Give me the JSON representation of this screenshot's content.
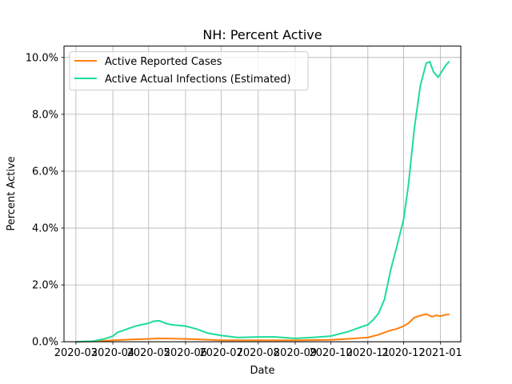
{
  "chart_data": {
    "type": "line",
    "title": "NH: Percent Active",
    "xlabel": "Date",
    "ylabel": "Percent Active",
    "x_ticks": [
      "2020-03",
      "2020-04",
      "2020-05",
      "2020-06",
      "2020-07",
      "2020-08",
      "2020-09",
      "2020-10",
      "2020-11",
      "2020-12",
      "2021-01"
    ],
    "y_ticks": [
      "0.0%",
      "2.0%",
      "4.0%",
      "6.0%",
      "8.0%",
      "10.0%"
    ],
    "xlim": [
      "2020-02-20",
      "2021-01-18"
    ],
    "ylim": [
      0,
      10.4
    ],
    "grid": true,
    "legend_position": "top-left",
    "series": [
      {
        "name": "Active Reported Cases",
        "color": "#ff7f0e",
        "x": [
          "2020-03-01",
          "2020-03-15",
          "2020-04-01",
          "2020-04-15",
          "2020-05-01",
          "2020-05-10",
          "2020-05-20",
          "2020-06-01",
          "2020-06-15",
          "2020-07-01",
          "2020-08-01",
          "2020-09-01",
          "2020-10-01",
          "2020-10-15",
          "2020-11-01",
          "2020-11-10",
          "2020-11-20",
          "2020-11-25",
          "2020-12-01",
          "2020-12-05",
          "2020-12-10",
          "2020-12-15",
          "2020-12-20",
          "2020-12-25",
          "2020-12-28",
          "2021-01-01",
          "2021-01-05",
          "2021-01-08"
        ],
        "values": [
          0,
          0.01,
          0.05,
          0.08,
          0.1,
          0.12,
          0.11,
          0.1,
          0.08,
          0.05,
          0.05,
          0.05,
          0.07,
          0.1,
          0.15,
          0.25,
          0.4,
          0.45,
          0.55,
          0.65,
          0.85,
          0.92,
          0.97,
          0.88,
          0.93,
          0.9,
          0.95,
          0.96
        ]
      },
      {
        "name": "Active Actual Infections (Estimated)",
        "color": "#1fdc9a",
        "x": [
          "2020-03-01",
          "2020-03-15",
          "2020-03-25",
          "2020-04-01",
          "2020-04-05",
          "2020-04-10",
          "2020-04-15",
          "2020-04-20",
          "2020-04-25",
          "2020-05-01",
          "2020-05-05",
          "2020-05-10",
          "2020-05-15",
          "2020-05-20",
          "2020-06-01",
          "2020-06-10",
          "2020-06-20",
          "2020-07-01",
          "2020-07-15",
          "2020-08-01",
          "2020-08-15",
          "2020-09-01",
          "2020-09-15",
          "2020-10-01",
          "2020-10-15",
          "2020-10-25",
          "2020-11-01",
          "2020-11-05",
          "2020-11-10",
          "2020-11-15",
          "2020-11-20",
          "2020-11-25",
          "2020-12-01",
          "2020-12-05",
          "2020-12-10",
          "2020-12-15",
          "2020-12-20",
          "2020-12-23",
          "2020-12-26",
          "2020-12-30",
          "2021-01-02",
          "2021-01-05",
          "2021-01-08"
        ],
        "values": [
          0,
          0.02,
          0.1,
          0.2,
          0.33,
          0.4,
          0.48,
          0.55,
          0.6,
          0.65,
          0.72,
          0.74,
          0.65,
          0.6,
          0.55,
          0.45,
          0.3,
          0.22,
          0.15,
          0.17,
          0.17,
          0.12,
          0.15,
          0.2,
          0.35,
          0.5,
          0.6,
          0.75,
          1.0,
          1.5,
          2.5,
          3.3,
          4.3,
          5.5,
          7.5,
          9.0,
          9.8,
          9.85,
          9.5,
          9.3,
          9.5,
          9.7,
          9.85
        ]
      }
    ]
  }
}
